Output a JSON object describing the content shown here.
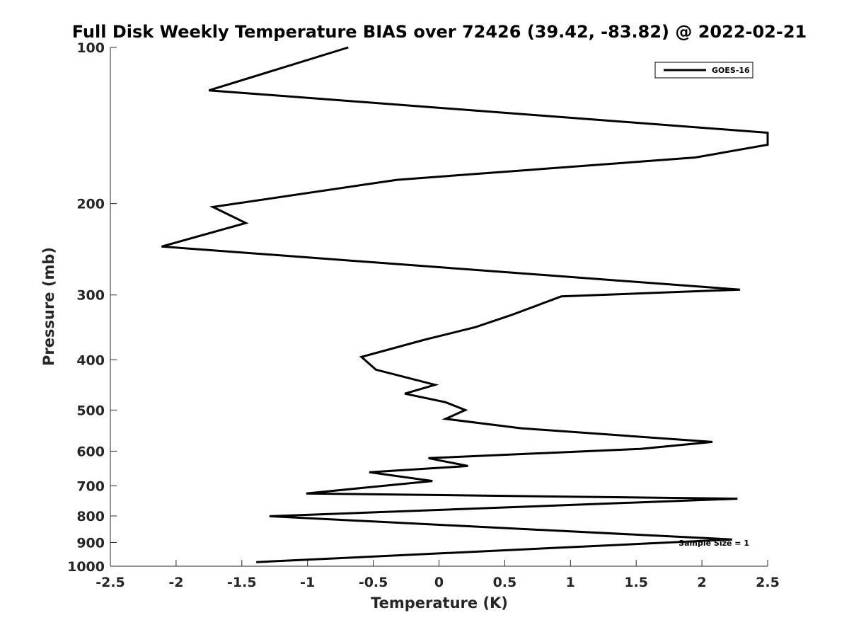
{
  "chart_data": {
    "type": "line",
    "title": "Full Disk Weekly Temperature BIAS over 72426 (39.42, -83.82) @ 2022-02-21",
    "xlabel": "Temperature (K)",
    "ylabel": "Pressure (mb)",
    "xlim": [
      -2.5,
      2.5
    ],
    "ylim": [
      100,
      1000
    ],
    "y_scale": "log",
    "y_reversed": true,
    "grid": false,
    "legend_position": "top-right",
    "x_ticks": [
      -2.5,
      -2,
      -1.5,
      -1,
      -0.5,
      0,
      0.5,
      1,
      1.5,
      2,
      2.5
    ],
    "x_tick_labels": [
      "-2.5",
      "-2",
      "-1.5",
      "-1",
      "-0.5",
      "0",
      "0.5",
      "1",
      "1.5",
      "2",
      "2.5"
    ],
    "y_ticks": [
      100,
      200,
      300,
      400,
      500,
      600,
      700,
      800,
      900,
      1000
    ],
    "y_tick_labels": [
      "100",
      "200",
      "300",
      "400",
      "500",
      "600",
      "700",
      "800",
      "900",
      "1000"
    ],
    "annotation": "Sample Size = 1",
    "line_color": "#000000",
    "series": [
      {
        "name": "GOES-16",
        "x": [
          -0.69,
          -1.75,
          2.5,
          2.5,
          1.95,
          -0.32,
          -1.72,
          -1.47,
          -2.11,
          2.29,
          0.93,
          0.55,
          0.28,
          -0.11,
          -0.59,
          -0.48,
          -0.03,
          -0.26,
          0.05,
          0.2,
          0.05,
          0.62,
          2.08,
          1.53,
          -0.08,
          0.22,
          -0.53,
          -0.05,
          -1.01,
          2.27,
          -1.29,
          2.23,
          -1.39
        ],
        "y": [
          100,
          121,
          146,
          154,
          163,
          180,
          203,
          218,
          242,
          293,
          302,
          328,
          346,
          366,
          395,
          418,
          447,
          465,
          483,
          500,
          520,
          542,
          576,
          594,
          619,
          641,
          659,
          685,
          724,
          741,
          801,
          888,
          982
        ]
      }
    ]
  }
}
